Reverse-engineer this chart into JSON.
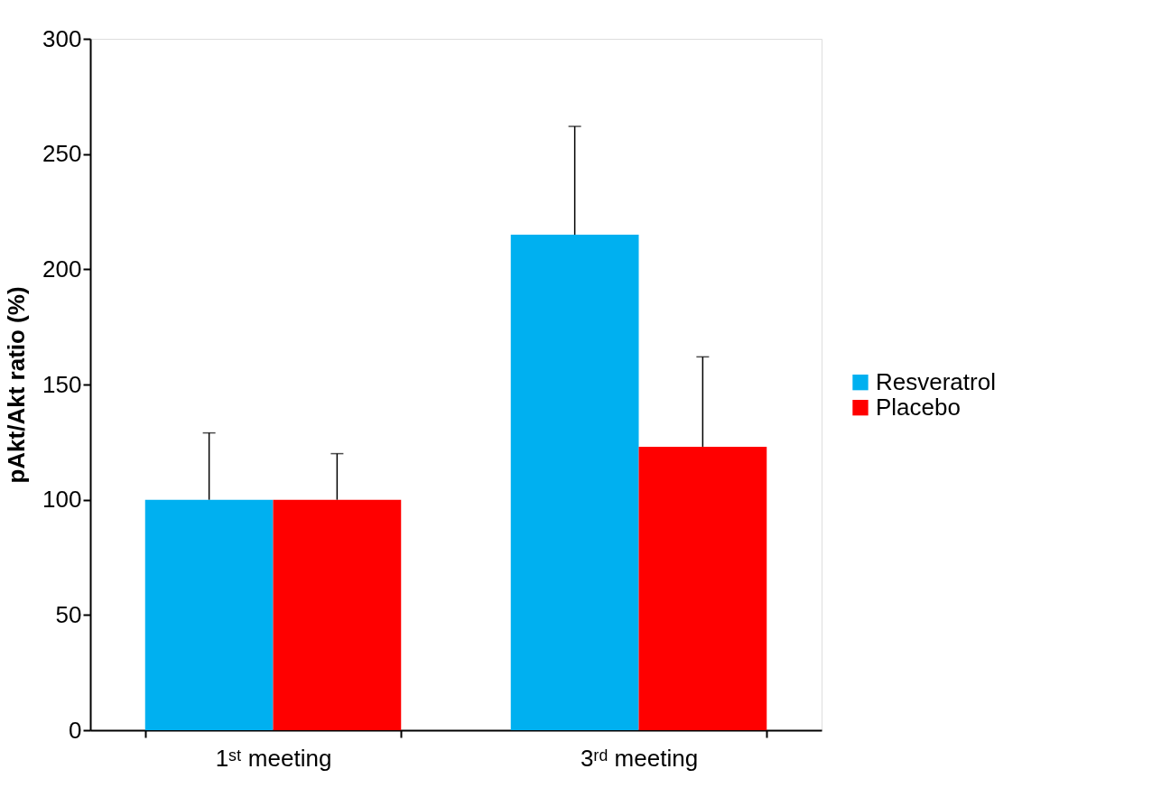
{
  "chart_data": {
    "type": "bar",
    "ylabel": "pAkt/Akt ratio (%)",
    "categories": [
      "1ˢᵗ meeting",
      "3ʳᵈ meeting"
    ],
    "series": [
      {
        "name": "Resveratrol",
        "color": "#00b0f0",
        "values": [
          100,
          215
        ],
        "errors": [
          [
            100,
            129
          ],
          [
            215,
            262
          ]
        ]
      },
      {
        "name": "Placebo",
        "color": "#ff0000",
        "values": [
          100,
          123
        ],
        "errors": [
          [
            100,
            120
          ],
          [
            123,
            162
          ]
        ]
      }
    ],
    "ylim": [
      0,
      300
    ],
    "yticks": [
      0,
      50,
      100,
      150,
      200,
      250,
      300
    ],
    "grid": false,
    "legend": "right"
  }
}
